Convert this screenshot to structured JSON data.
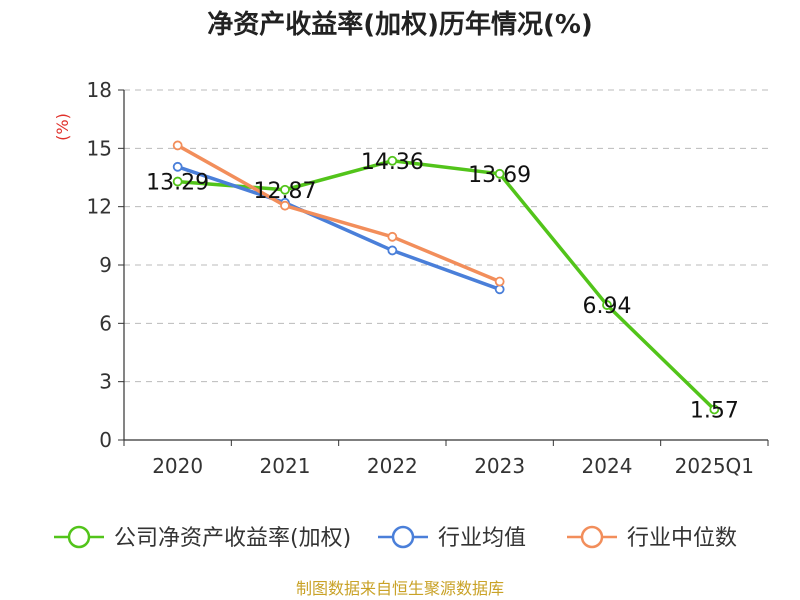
{
  "chart_data": {
    "type": "line",
    "title": "净资产收益率(加权)历年情况(%)",
    "ylabel": "(%)",
    "xlabel": "",
    "categories": [
      "2020",
      "2021",
      "2022",
      "2023",
      "2024",
      "2025Q1"
    ],
    "ylim": [
      0,
      18
    ],
    "yticks": [
      0,
      3,
      6,
      9,
      12,
      15,
      18
    ],
    "grid": true,
    "legend_position": "bottom",
    "series": [
      {
        "name": "公司净资产收益率(加权)",
        "color": "#52c41a",
        "values": [
          13.29,
          12.87,
          14.36,
          13.69,
          6.94,
          1.57
        ],
        "labels": [
          "13.29",
          "12.87",
          "14.36",
          "13.69",
          "6.94",
          "1.57"
        ],
        "show_labels": true
      },
      {
        "name": "行业均值",
        "color": "#4a7fd9",
        "values": [
          14.05,
          12.2,
          9.75,
          7.75,
          null,
          null
        ],
        "show_labels": false
      },
      {
        "name": "行业中位数",
        "color": "#f28e5b",
        "values": [
          15.15,
          12.05,
          10.45,
          8.15,
          null,
          null
        ],
        "show_labels": false
      }
    ]
  },
  "colors": {
    "axis": "#333333",
    "grid": "#bbbbbb",
    "unit": "#e0302a",
    "source": "#c9a227"
  },
  "source": "制图数据来自恒生聚源数据库"
}
